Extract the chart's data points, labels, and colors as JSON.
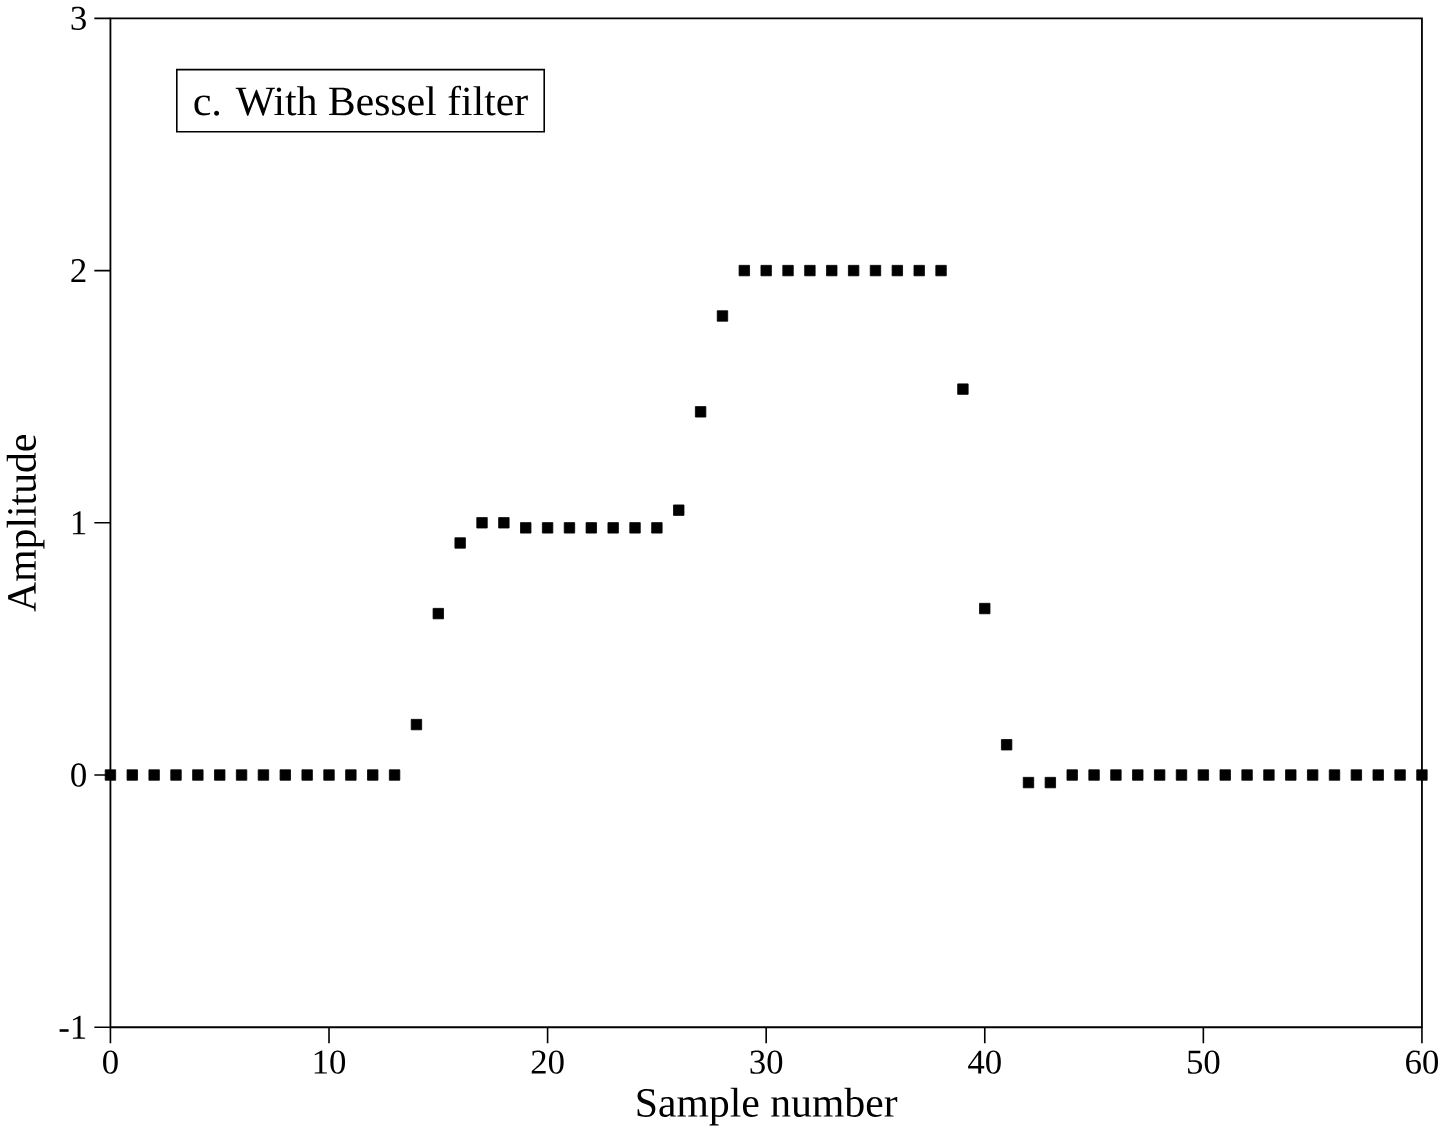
{
  "chart_data": {
    "type": "scatter",
    "xlabel": "Sample number",
    "ylabel": "Amplitude",
    "annotations": [
      "c.  With Bessel filter"
    ],
    "x": [
      0,
      1,
      2,
      3,
      4,
      5,
      6,
      7,
      8,
      9,
      10,
      11,
      12,
      13,
      14,
      15,
      16,
      17,
      18,
      19,
      20,
      21,
      22,
      23,
      24,
      25,
      26,
      27,
      28,
      29,
      30,
      31,
      32,
      33,
      34,
      35,
      36,
      37,
      38,
      39,
      40,
      41,
      42,
      43,
      44,
      45,
      46,
      47,
      48,
      49,
      50,
      51,
      52,
      53,
      54,
      55,
      56,
      57,
      58,
      59,
      60
    ],
    "series": [
      {
        "color": "#000000",
        "values": [
          0,
          0,
          0,
          0,
          0,
          0,
          0,
          0,
          0,
          0,
          0,
          0,
          0,
          0,
          0.2,
          0.64,
          0.92,
          1.0,
          1.0,
          0.98,
          0.98,
          0.98,
          0.98,
          0.98,
          0.98,
          0.98,
          1.05,
          1.44,
          1.82,
          2.0,
          2.0,
          2.0,
          2.0,
          2.0,
          2.0,
          2.0,
          2.0,
          2.0,
          2.0,
          1.53,
          0.66,
          0.12,
          -0.03,
          -0.03,
          0,
          0,
          0,
          0,
          0,
          0,
          0,
          0,
          0,
          0,
          0,
          0,
          0,
          0,
          0,
          0,
          0
        ]
      }
    ],
    "marker": "square",
    "grid": false,
    "xlim": [
      0,
      60
    ],
    "ylim": [
      -1,
      3
    ],
    "xticks": [
      0,
      10,
      20,
      30,
      40,
      50,
      60
    ],
    "yticks": [
      -1,
      0,
      1,
      2,
      3
    ]
  }
}
